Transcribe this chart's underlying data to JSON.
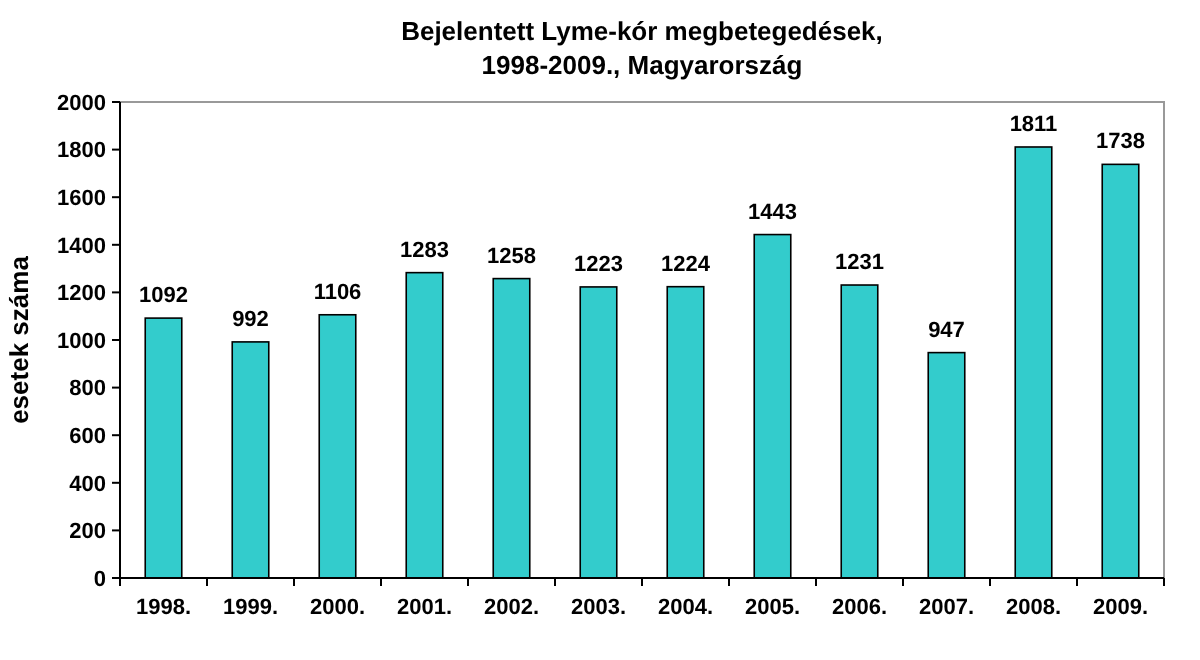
{
  "chart_data": {
    "type": "bar",
    "title": "Bejelentett Lyme-kór megbetegedések,\n1998-2009., Magyarország",
    "ylabel": "esetek száma",
    "categories": [
      "1998.",
      "1999.",
      "2000.",
      "2001.",
      "2002.",
      "2003.",
      "2004.",
      "2005.",
      "2006.",
      "2007.",
      "2008.",
      "2009."
    ],
    "values": [
      1092,
      992,
      1106,
      1283,
      1258,
      1223,
      1224,
      1443,
      1231,
      947,
      1811,
      1738
    ],
    "color": "#33cccc",
    "ylim": [
      0,
      2000
    ],
    "yticks": [
      0,
      200,
      400,
      600,
      800,
      1000,
      1200,
      1400,
      1600,
      1800,
      2000
    ],
    "grid": false,
    "data_labels": true
  }
}
